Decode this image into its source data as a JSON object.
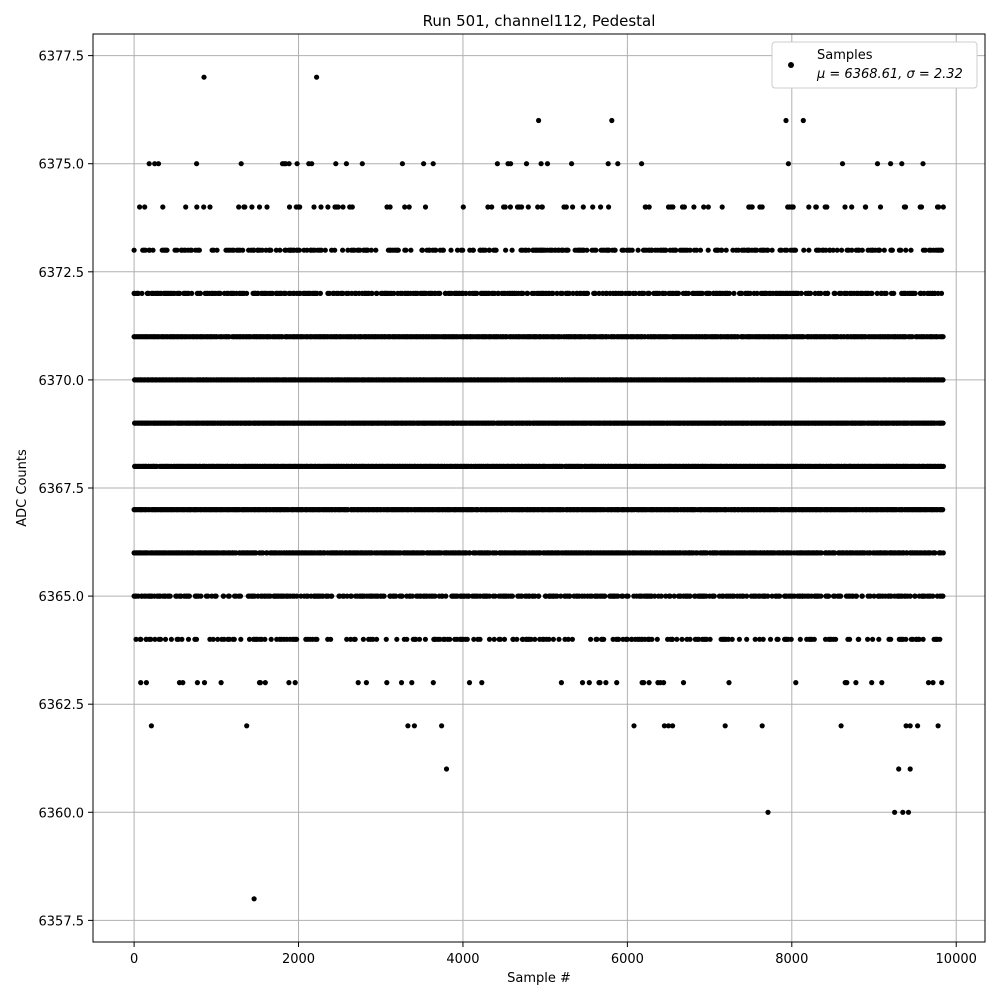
{
  "chart_data": {
    "type": "scatter",
    "title": "Run 501, channel112, Pedestal",
    "xlabel": "Sample #",
    "ylabel": "ADC Counts",
    "xlim": [
      -500,
      10350
    ],
    "ylim": [
      6357.0,
      6378.0
    ],
    "x_ticks": [
      0,
      2000,
      4000,
      6000,
      8000,
      10000
    ],
    "x_tick_labels": [
      "0",
      "2000",
      "4000",
      "6000",
      "8000",
      "10000"
    ],
    "y_ticks": [
      6357.5,
      6360.0,
      6362.5,
      6365.0,
      6367.5,
      6370.0,
      6372.5,
      6375.0,
      6377.5
    ],
    "y_tick_labels": [
      "6357.5",
      "6360.0",
      "6362.5",
      "6365.0",
      "6367.5",
      "6370.0",
      "6372.5",
      "6375.0",
      "6377.5"
    ],
    "grid": true,
    "legend_position": "top-right",
    "marker_color": "#000000",
    "n_samples": 9850,
    "series": [
      {
        "name": "Samples",
        "label_line2": "μ = 6368.61, σ = 2.32",
        "levels": [
          {
            "y": 6366.0,
            "density": 0.88
          },
          {
            "y": 6367.0,
            "density": 0.97
          },
          {
            "y": 6368.0,
            "density": 0.99
          },
          {
            "y": 6369.0,
            "density": 0.99
          },
          {
            "y": 6370.0,
            "density": 0.99
          },
          {
            "y": 6371.0,
            "density": 0.97
          },
          {
            "y": 6372.0,
            "density": 0.6
          },
          {
            "y": 6373.0,
            "density": 0.42
          },
          {
            "y": 6365.0,
            "density": 0.55
          },
          {
            "y": 6364.0,
            "density": 0.32
          },
          {
            "y": 6374.0,
            "density": 0.12
          },
          {
            "y": 6363.0,
            "density": 0.05
          },
          {
            "y": 6375.0,
            "density": 0.05
          }
        ],
        "outliers": [
          {
            "x": 850,
            "y": 6377.0
          },
          {
            "x": 2220,
            "y": 6377.0
          },
          {
            "x": 4920,
            "y": 6376.0
          },
          {
            "x": 5810,
            "y": 6376.0
          },
          {
            "x": 7930,
            "y": 6376.0
          },
          {
            "x": 8140,
            "y": 6376.0
          },
          {
            "x": 210,
            "y": 6362.0
          },
          {
            "x": 1370,
            "y": 6362.0
          },
          {
            "x": 3330,
            "y": 6362.0
          },
          {
            "x": 3410,
            "y": 6362.0
          },
          {
            "x": 3740,
            "y": 6362.0
          },
          {
            "x": 6080,
            "y": 6362.0
          },
          {
            "x": 6450,
            "y": 6362.0
          },
          {
            "x": 6500,
            "y": 6362.0
          },
          {
            "x": 6550,
            "y": 6362.0
          },
          {
            "x": 7190,
            "y": 6362.0
          },
          {
            "x": 7640,
            "y": 6362.0
          },
          {
            "x": 8600,
            "y": 6362.0
          },
          {
            "x": 9390,
            "y": 6362.0
          },
          {
            "x": 9440,
            "y": 6362.0
          },
          {
            "x": 9530,
            "y": 6362.0
          },
          {
            "x": 9780,
            "y": 6362.0
          },
          {
            "x": 3800,
            "y": 6361.0
          },
          {
            "x": 9300,
            "y": 6361.0
          },
          {
            "x": 9440,
            "y": 6361.0
          },
          {
            "x": 7710,
            "y": 6360.0
          },
          {
            "x": 9250,
            "y": 6360.0
          },
          {
            "x": 9350,
            "y": 6360.0
          },
          {
            "x": 9420,
            "y": 6360.0
          },
          {
            "x": 1460,
            "y": 6358.0
          }
        ]
      }
    ]
  }
}
